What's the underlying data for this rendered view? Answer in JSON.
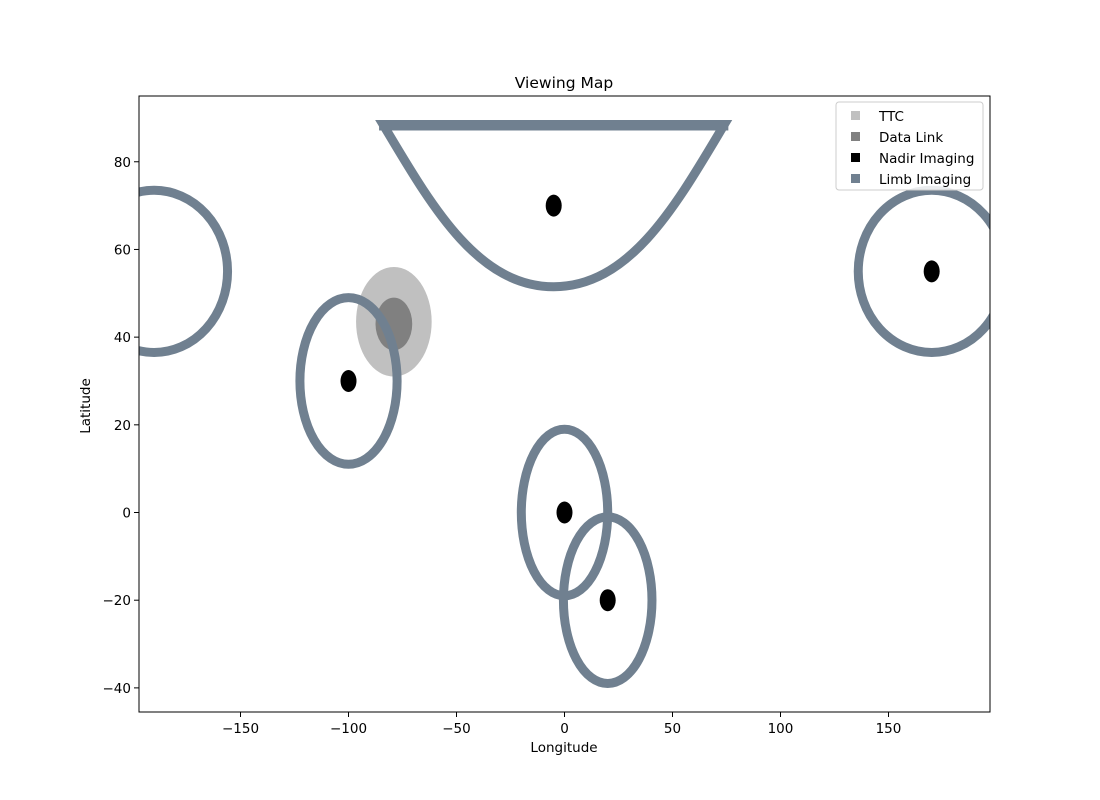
{
  "chart_data": {
    "type": "scatter",
    "title": "Viewing Map",
    "xlabel": "Longitude",
    "ylabel": "Latitude",
    "xlim": [
      -197,
      197
    ],
    "ylim": [
      -45.5,
      95
    ],
    "xticks": [
      -150,
      -100,
      -50,
      0,
      50,
      100,
      150
    ],
    "yticks": [
      -40,
      -20,
      0,
      20,
      40,
      60,
      80
    ],
    "xtick_labels": [
      "−150",
      "−100",
      "−50",
      "0",
      "50",
      "100",
      "150"
    ],
    "ytick_labels": [
      "−40",
      "−20",
      "0",
      "20",
      "40",
      "60",
      "80"
    ],
    "grid": false,
    "legend_position": "top-right",
    "series": [
      {
        "name": "TTC",
        "color": "#c0c0c0",
        "areas": [
          {
            "center": [
              -79,
              43.5
            ],
            "semi_axes": [
              17.5,
              12.5
            ]
          }
        ]
      },
      {
        "name": "Data Link",
        "color": "#808080",
        "areas": [
          {
            "center": [
              -79,
              43
            ],
            "semi_axes": [
              8.5,
              6
            ]
          }
        ]
      },
      {
        "name": "Nadir Imaging",
        "color": "#000000",
        "points": [
          [
            -100,
            30
          ],
          [
            0,
            0
          ],
          [
            20,
            -20
          ],
          [
            -5,
            70
          ],
          [
            170,
            55
          ]
        ]
      },
      {
        "name": "Limb Imaging",
        "color": "#708090",
        "rings": [
          {
            "center": [
              -100,
              30
            ],
            "semi_axes": [
              22.5,
              19
            ]
          },
          {
            "center": [
              0,
              0
            ],
            "semi_axes": [
              20,
              19
            ]
          },
          {
            "center": [
              20,
              -20
            ],
            "semi_axes": [
              20.5,
              19
            ]
          }
        ],
        "caps": [
          {
            "center_lon": -5,
            "min_lat": 51.5,
            "max_lat": 88.5,
            "half_width_at_top": 79
          }
        ],
        "wrapped_arcs": [
          {
            "center": [
              170,
              55
            ],
            "semi_axes": [
              34,
              18.5
            ]
          }
        ]
      }
    ]
  }
}
